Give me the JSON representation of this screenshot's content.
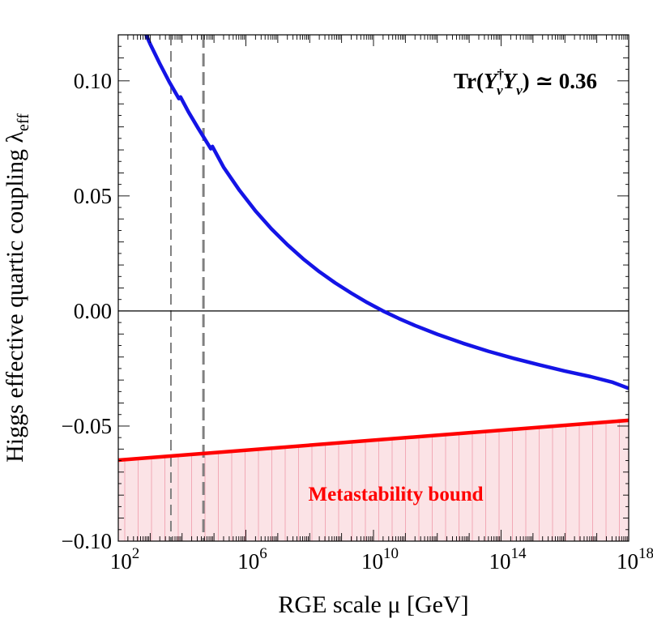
{
  "chart_data": {
    "type": "line",
    "title": "",
    "xlabel": "RGE scale μ [GeV]",
    "ylabel": "Higgs effective quartic coupling λ",
    "ylabel_sub": "eff",
    "xscale": "log10",
    "xlim_log10": [
      2,
      18
    ],
    "ylim": [
      -0.1,
      0.12
    ],
    "x_ticks": [
      {
        "base": "10",
        "exp": "2",
        "log10": 2
      },
      {
        "base": "10",
        "exp": "6",
        "log10": 6
      },
      {
        "base": "10",
        "exp": "10",
        "log10": 10
      },
      {
        "base": "10",
        "exp": "14",
        "log10": 14
      },
      {
        "base": "10",
        "exp": "18",
        "log10": 18
      }
    ],
    "y_ticks": [
      {
        "value": 0.1,
        "label": "0.10"
      },
      {
        "value": 0.05,
        "label": "0.05"
      },
      {
        "value": 0.0,
        "label": "0.00"
      },
      {
        "value": -0.05,
        "label": "−0.05"
      },
      {
        "value": -0.1,
        "label": "−0.10"
      }
    ],
    "annotation": {
      "prefix": "Tr(",
      "y1": "Y",
      "y1_sup": "†",
      "y1_sub": "ν",
      "y2": "Y",
      "y2_sub": "ν",
      "suffix": ") ≃ 0.36"
    },
    "series": [
      {
        "color": "#1414e6",
        "x_log10": [
          2.85,
          3.0,
          3.3,
          3.6,
          3.9,
          3.95,
          4.2,
          4.5,
          4.9,
          4.95,
          5.3,
          5.8,
          6.3,
          6.8,
          7.3,
          7.8,
          8.3,
          8.8,
          9.3,
          9.8,
          10.3,
          10.8,
          11.3,
          12.0,
          12.8,
          13.6,
          14.4,
          15.2,
          16.0,
          16.8,
          17.5,
          18.0
        ],
        "y": [
          0.1207,
          0.116,
          0.1075,
          0.0995,
          0.0923,
          0.093,
          0.0865,
          0.0795,
          0.0705,
          0.0715,
          0.0625,
          0.0524,
          0.0435,
          0.0357,
          0.0288,
          0.0226,
          0.0171,
          0.0122,
          0.0078,
          0.0037,
          0.0,
          -0.0033,
          -0.0063,
          -0.0101,
          -0.014,
          -0.0175,
          -0.0206,
          -0.0234,
          -0.0261,
          -0.0285,
          -0.031,
          -0.0336
        ]
      },
      {
        "color": "#ff0000",
        "x_log10": [
          2,
          18
        ],
        "y": [
          -0.0648,
          -0.0475
        ]
      }
    ],
    "shaded_region": {
      "label": "Metastability bound",
      "color": "#ff0000",
      "fill": "#fbe3e6",
      "hatch": "#f2a9b6",
      "x_log10": [
        2,
        18
      ],
      "upper_y": [
        -0.0648,
        -0.0475
      ],
      "lower_y": -0.1
    },
    "vertical_lines": [
      {
        "x_log10": 3.65,
        "color": "#808080",
        "style": "dashed-thin"
      },
      {
        "x_log10": 4.67,
        "color": "#808080",
        "style": "dashed-thick"
      }
    ],
    "zero_line": {
      "y": 0,
      "color": "#000000"
    },
    "grid": false,
    "legend": "none"
  }
}
